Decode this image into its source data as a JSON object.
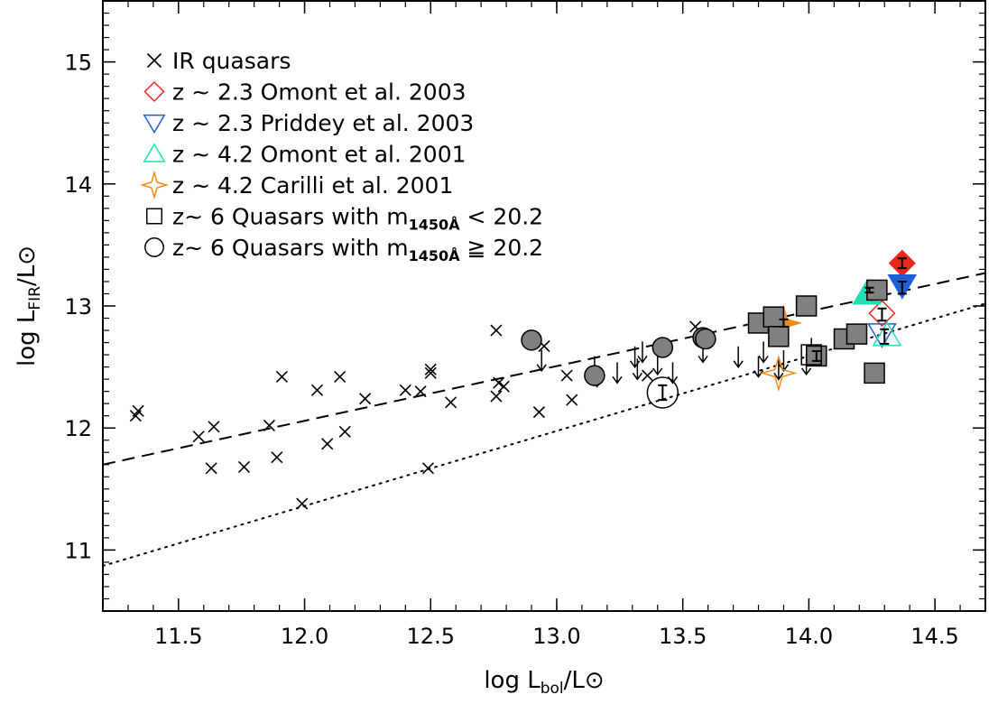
{
  "chart_data": {
    "type": "scatter",
    "xlabel": "log L_bol/L⊙",
    "ylabel": "log L_FIR/L⊙",
    "xlim": [
      11.2,
      14.7
    ],
    "ylim": [
      10.5,
      15.5
    ],
    "x_ticks": [
      "11.5",
      "12.0",
      "12.5",
      "13.0",
      "13.5",
      "14.0",
      "14.5"
    ],
    "y_ticks": [
      "11",
      "12",
      "13",
      "14",
      "15"
    ],
    "legend_position": "top-left",
    "legend": [
      {
        "text": "IR quasars",
        "prefix": "",
        "sub": "",
        "suffix": "",
        "marker": "cross",
        "color": "#000000"
      },
      {
        "text": "z ~ 2.3 Omont et al. 2003",
        "prefix": "",
        "sub": "",
        "suffix": "",
        "marker": "diamond-open",
        "color": "#e8281c"
      },
      {
        "text": "z ~ 2.3 Priddey et al. 2003",
        "prefix": "",
        "sub": "",
        "suffix": "",
        "marker": "triangle-down-open",
        "color": "#1f5fd6"
      },
      {
        "text": "z ~ 4.2 Omont et al. 2001",
        "prefix": "",
        "sub": "",
        "suffix": "",
        "marker": "triangle-up-open",
        "color": "#22e0b4"
      },
      {
        "text": "z ~ 4.2 Carilli et al. 2001",
        "prefix": "",
        "sub": "",
        "suffix": "",
        "marker": "star-open",
        "color": "#f08a1c"
      },
      {
        "text": "",
        "prefix": "z~ 6 Quasars with m",
        "sub": "1450Å",
        "suffix": " < 20.2",
        "marker": "square-open",
        "color": "#000000"
      },
      {
        "text": "",
        "prefix": "z~ 6 Quasars with m",
        "sub": "1450Å",
        "suffix": " ≧ 20.2",
        "marker": "circle-open",
        "color": "#000000"
      }
    ],
    "lines": [
      {
        "name": "",
        "style": "dashed",
        "x": [
          11.2,
          14.7
        ],
        "y": [
          11.7,
          13.27
        ]
      },
      {
        "name": "",
        "style": "dotted",
        "x": [
          11.2,
          14.7
        ],
        "y": [
          10.87,
          13.02
        ]
      }
    ],
    "series": [
      {
        "name": "IR quasars",
        "marker": "cross",
        "color": "#000000",
        "x": [
          11.33,
          11.34,
          11.58,
          11.63,
          11.64,
          11.76,
          11.86,
          11.89,
          11.91,
          11.99,
          12.05,
          12.09,
          12.14,
          12.16,
          12.24,
          12.4,
          12.46,
          12.5,
          12.5,
          12.49,
          12.58,
          12.76,
          12.77,
          12.79,
          12.76,
          12.93,
          12.95,
          13.04,
          13.06,
          13.36,
          13.55
        ],
        "y": [
          12.1,
          12.14,
          11.93,
          11.67,
          12.01,
          11.68,
          12.02,
          11.76,
          12.42,
          11.38,
          12.31,
          11.87,
          12.42,
          11.97,
          12.24,
          12.31,
          12.3,
          12.48,
          12.45,
          11.67,
          12.21,
          12.8,
          12.37,
          12.34,
          12.26,
          12.13,
          12.67,
          12.43,
          12.23,
          12.43,
          12.83
        ]
      },
      {
        "name": "IR quasars upper limits",
        "marker": "arrow-down",
        "color": "#000000",
        "x": [
          12.94,
          13.15,
          13.16,
          13.24,
          13.31,
          13.32,
          13.34,
          13.4,
          13.46,
          13.58,
          13.72,
          13.8,
          13.82,
          13.88,
          13.9,
          13.99,
          14.01
        ],
        "y": [
          12.55,
          12.5,
          12.42,
          12.45,
          12.58,
          12.48,
          12.62,
          12.52,
          12.45,
          12.62,
          12.58,
          12.5,
          12.62,
          12.48,
          12.55,
          12.52,
          12.65
        ]
      },
      {
        "name": "z ~ 2.3 Omont et al. 2003",
        "marker": "diamond",
        "color": "#e8281c",
        "x": [
          14.37,
          14.29
        ],
        "y": [
          13.35,
          12.94
        ],
        "filled": [
          true,
          false
        ]
      },
      {
        "name": "z ~ 2.3 Priddey et al. 2003",
        "marker": "triangle-down",
        "color": "#1f5fd6",
        "x": [
          14.37,
          14.29
        ],
        "y": [
          13.17,
          12.77
        ],
        "filled": [
          true,
          false
        ]
      },
      {
        "name": "z ~ 4.2 Omont et al. 2001",
        "marker": "triangle-up",
        "color": "#22e0b4",
        "x": [
          14.23,
          14.31
        ],
        "y": [
          13.1,
          12.76
        ],
        "filled": [
          true,
          false
        ]
      },
      {
        "name": "z ~ 4.2 Carilli et al. 2001",
        "marker": "star",
        "color": "#f08a1c",
        "x": [
          13.9,
          13.88
        ],
        "y": [
          12.86,
          12.45
        ],
        "filled": [
          true,
          false
        ]
      },
      {
        "name": "z~ 6 Quasars with m1450Å < 20.2",
        "marker": "square",
        "color": "#808080",
        "x": [
          13.8,
          13.86,
          13.88,
          13.99,
          14.03,
          14.14,
          14.19,
          14.27,
          14.26
        ],
        "y": [
          12.86,
          12.91,
          12.75,
          13.0,
          12.59,
          12.73,
          12.77,
          13.13,
          12.45
        ],
        "filled": [
          true,
          true,
          true,
          true,
          true,
          true,
          true,
          true,
          true
        ]
      },
      {
        "name": "z~ 6 Quasars with m1450Å < 20.2 open",
        "marker": "square",
        "color": "#000000",
        "x": [
          14.01
        ],
        "y": [
          12.6
        ],
        "filled": [
          false
        ]
      },
      {
        "name": "z~ 6 Quasars with m1450Å ≧ 20.2",
        "marker": "circle",
        "color": "#808080",
        "x": [
          12.9,
          13.15,
          13.42,
          13.58,
          13.59
        ],
        "y": [
          12.72,
          12.43,
          12.66,
          12.74,
          12.73
        ],
        "filled": [
          true,
          true,
          true,
          true,
          true
        ]
      },
      {
        "name": "z~ 6 Quasars with m1450Å ≧ 20.2 open",
        "marker": "circle",
        "color": "#000000",
        "x": [
          13.42
        ],
        "y": [
          12.29
        ],
        "filled": [
          false
        ]
      }
    ],
    "error_bars": [
      {
        "x": 14.37,
        "y": 13.35,
        "err": 0.04
      },
      {
        "x": 14.29,
        "y": 12.93,
        "err": 0.05
      },
      {
        "x": 14.37,
        "y": 13.15,
        "err": 0.05
      },
      {
        "x": 14.24,
        "y": 13.13,
        "err": 0.02
      },
      {
        "x": 13.9,
        "y": 12.86,
        "err": 0.03
      },
      {
        "x": 14.3,
        "y": 12.75,
        "err": 0.06
      },
      {
        "x": 14.03,
        "y": 12.59,
        "err": 0.04
      },
      {
        "x": 13.42,
        "y": 12.29,
        "err": 0.06
      }
    ]
  }
}
